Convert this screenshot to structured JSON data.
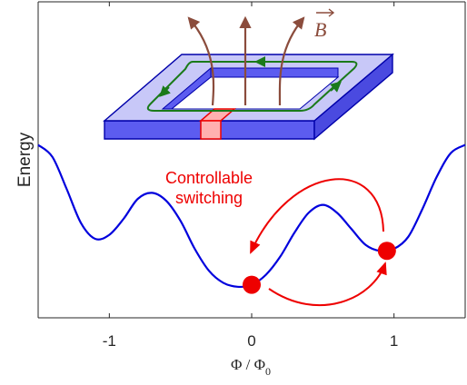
{
  "figure": {
    "y_axis_label": "Energy",
    "x_axis_label": {
      "main": "Φ / Φ",
      "subscript": "0"
    },
    "x_ticks": [
      "-1",
      "0",
      "1"
    ],
    "annotation": {
      "line1": "Controllable",
      "line2": "switching"
    },
    "field_label": "B",
    "colors": {
      "curve": "#0000dd",
      "marker": "#ee0000",
      "arrow_switch": "#ee0000",
      "field_lines": "#8b4c3c",
      "current_loop": "#1a7a1a",
      "ring_top": "#c8c8f8",
      "ring_side": "#5c5cf0",
      "junction": "#ffb0b0",
      "axis": "#262626"
    }
  },
  "chart_data": {
    "type": "line",
    "title": "",
    "xlabel": "Φ / Φ0",
    "ylabel": "Energy",
    "xlim": [
      -1.5,
      1.5
    ],
    "y_ticks_shown": false,
    "x": [
      -1.5,
      -1.4,
      -1.3,
      -1.2,
      -1.1,
      -1.0,
      -0.9,
      -0.8,
      -0.7,
      -0.6,
      -0.5,
      -0.4,
      -0.3,
      -0.2,
      -0.1,
      0.0,
      0.1,
      0.2,
      0.3,
      0.4,
      0.5,
      0.6,
      0.7,
      0.8,
      0.9,
      1.0,
      1.1,
      1.2,
      1.3,
      1.4,
      1.5
    ],
    "series": [
      {
        "values": [
          0.72,
          0.66,
          0.5,
          0.33,
          0.25,
          0.27,
          0.35,
          0.45,
          0.48,
          0.44,
          0.34,
          0.2,
          0.09,
          0.03,
          0.01,
          0.02,
          0.07,
          0.16,
          0.28,
          0.38,
          0.42,
          0.38,
          0.3,
          0.22,
          0.19,
          0.2,
          0.26,
          0.4,
          0.56,
          0.68,
          0.72
        ]
      }
    ],
    "markers": [
      {
        "x": 0.0,
        "y": 0.02
      },
      {
        "x": 0.95,
        "y": 0.19
      }
    ]
  }
}
